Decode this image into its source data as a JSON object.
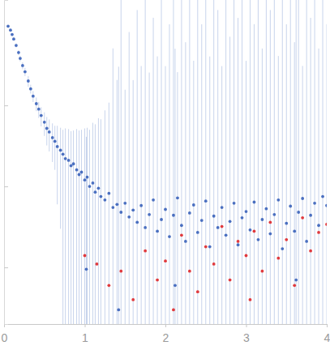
{
  "chart_data": {
    "type": "scatter",
    "log": "y",
    "tick_labels": "x",
    "grid": false,
    "xlim": [
      0,
      4
    ],
    "xticks": [
      0,
      1,
      2,
      3,
      4
    ],
    "ylim": [
      0.0002,
      2
    ],
    "yticks": [
      0.001,
      0.01,
      0.1
    ],
    "series": [
      {
        "color": "#4a6fc0",
        "marker": "circle",
        "x": [
          0.05,
          0.08,
          0.1,
          0.12,
          0.15,
          0.18,
          0.2,
          0.23,
          0.26,
          0.3,
          0.33,
          0.36,
          0.4,
          0.43,
          0.46,
          0.5,
          0.53,
          0.56,
          0.6,
          0.63,
          0.66,
          0.7,
          0.73,
          0.76,
          0.8,
          0.83,
          0.86,
          0.9,
          0.93,
          0.96,
          1.0,
          1.02,
          1.03,
          1.06,
          1.1,
          1.13,
          1.17,
          1.2,
          1.25,
          1.3,
          1.35,
          1.4,
          1.42,
          1.45,
          1.5,
          1.55,
          1.6,
          1.65,
          1.7,
          1.75,
          1.8,
          1.85,
          1.9,
          1.95,
          2.0,
          2.05,
          2.1,
          2.12,
          2.15,
          2.2,
          2.25,
          2.3,
          2.35,
          2.4,
          2.45,
          2.5,
          2.55,
          2.6,
          2.65,
          2.7,
          2.75,
          2.8,
          2.85,
          2.9,
          2.95,
          3.0,
          3.05,
          3.1,
          3.15,
          3.2,
          3.25,
          3.3,
          3.35,
          3.4,
          3.45,
          3.5,
          3.55,
          3.6,
          3.62,
          3.65,
          3.7,
          3.75,
          3.8,
          3.85,
          3.9,
          3.95,
          4.0
        ],
        "values": [
          0.95,
          0.85,
          0.75,
          0.66,
          0.55,
          0.45,
          0.38,
          0.31,
          0.26,
          0.2,
          0.16,
          0.13,
          0.105,
          0.09,
          0.075,
          0.062,
          0.052,
          0.047,
          0.04,
          0.036,
          0.031,
          0.028,
          0.025,
          0.022,
          0.021,
          0.018,
          0.019,
          0.016,
          0.014,
          0.015,
          0.012,
          0.00095,
          0.013,
          0.01,
          0.011,
          0.0085,
          0.0095,
          0.0075,
          0.0068,
          0.0082,
          0.0055,
          0.006,
          0.0003,
          0.0048,
          0.0062,
          0.0042,
          0.0051,
          0.0036,
          0.0058,
          0.0031,
          0.0045,
          0.0068,
          0.0028,
          0.0039,
          0.0052,
          0.0024,
          0.0044,
          0.0006,
          0.0072,
          0.0033,
          0.0021,
          0.0047,
          0.0059,
          0.0027,
          0.0038,
          0.0066,
          0.0018,
          0.0043,
          0.0031,
          0.0055,
          0.0025,
          0.0037,
          0.0062,
          0.0019,
          0.0041,
          0.0049,
          0.0029,
          0.0064,
          0.0022,
          0.0039,
          0.0053,
          0.0026,
          0.0045,
          0.0068,
          0.0017,
          0.0035,
          0.0057,
          0.0028,
          0.0007,
          0.0048,
          0.0071,
          0.0021,
          0.0044,
          0.0062,
          0.0033,
          0.0075,
          0.0058
        ],
        "errors": [
          0.03,
          0.03,
          0.03,
          0.03,
          0.03,
          0.03,
          0.03,
          0.03,
          0.03,
          0.03,
          0.02,
          0.02,
          0.02,
          0.02,
          0.02,
          0.02,
          0.02,
          0.02,
          0.02,
          0.02,
          0.025,
          0.025,
          0.025,
          0.03,
          0.03,
          0.03,
          0.03,
          0.035,
          0.035,
          0.035,
          0.04,
          0.04,
          0.04,
          0.04,
          0.05,
          0.05,
          0.06,
          0.06,
          0.08,
          0.1,
          0.5,
          0.2,
          0.3,
          2.0,
          0.15,
          0.8,
          0.2,
          1.5,
          0.3,
          2.0,
          0.25,
          1.2,
          0.4,
          2.0,
          0.3,
          1.0,
          2.0,
          0.5,
          0.25,
          2.0,
          0.6,
          2.0,
          0.35,
          2.0,
          1.0,
          2.0,
          0.4,
          2.0,
          1.5,
          0.3,
          2.0,
          0.7,
          2.0,
          1.2,
          2.0,
          0.35,
          2.0,
          1.0,
          2.0,
          0.5,
          2.0,
          1.5,
          2.0,
          0.4,
          2.0,
          1.0,
          2.0,
          0.6,
          2.0,
          2.0,
          0.3,
          2.0,
          1.2,
          2.0,
          0.5,
          2.0,
          1.0
        ]
      },
      {
        "color": "#e03a3e",
        "marker": "circle",
        "x": [
          1.0,
          1.15,
          1.3,
          1.45,
          1.6,
          1.75,
          1.9,
          2.0,
          2.1,
          2.2,
          2.3,
          2.4,
          2.5,
          2.6,
          2.7,
          2.8,
          2.9,
          3.0,
          3.05,
          3.1,
          3.2,
          3.3,
          3.4,
          3.5,
          3.6,
          3.7,
          3.8,
          3.9,
          4.0
        ],
        "values": [
          0.0014,
          0.0011,
          0.0006,
          0.0009,
          0.0004,
          0.0016,
          0.0007,
          0.0012,
          0.0003,
          0.0025,
          0.0009,
          0.0005,
          0.0018,
          0.0011,
          0.0032,
          0.0007,
          0.0021,
          0.0014,
          0.0004,
          0.0028,
          0.0009,
          0.0036,
          0.0013,
          0.0022,
          0.0006,
          0.0041,
          0.0016,
          0.0027,
          0.0034
        ]
      }
    ]
  }
}
